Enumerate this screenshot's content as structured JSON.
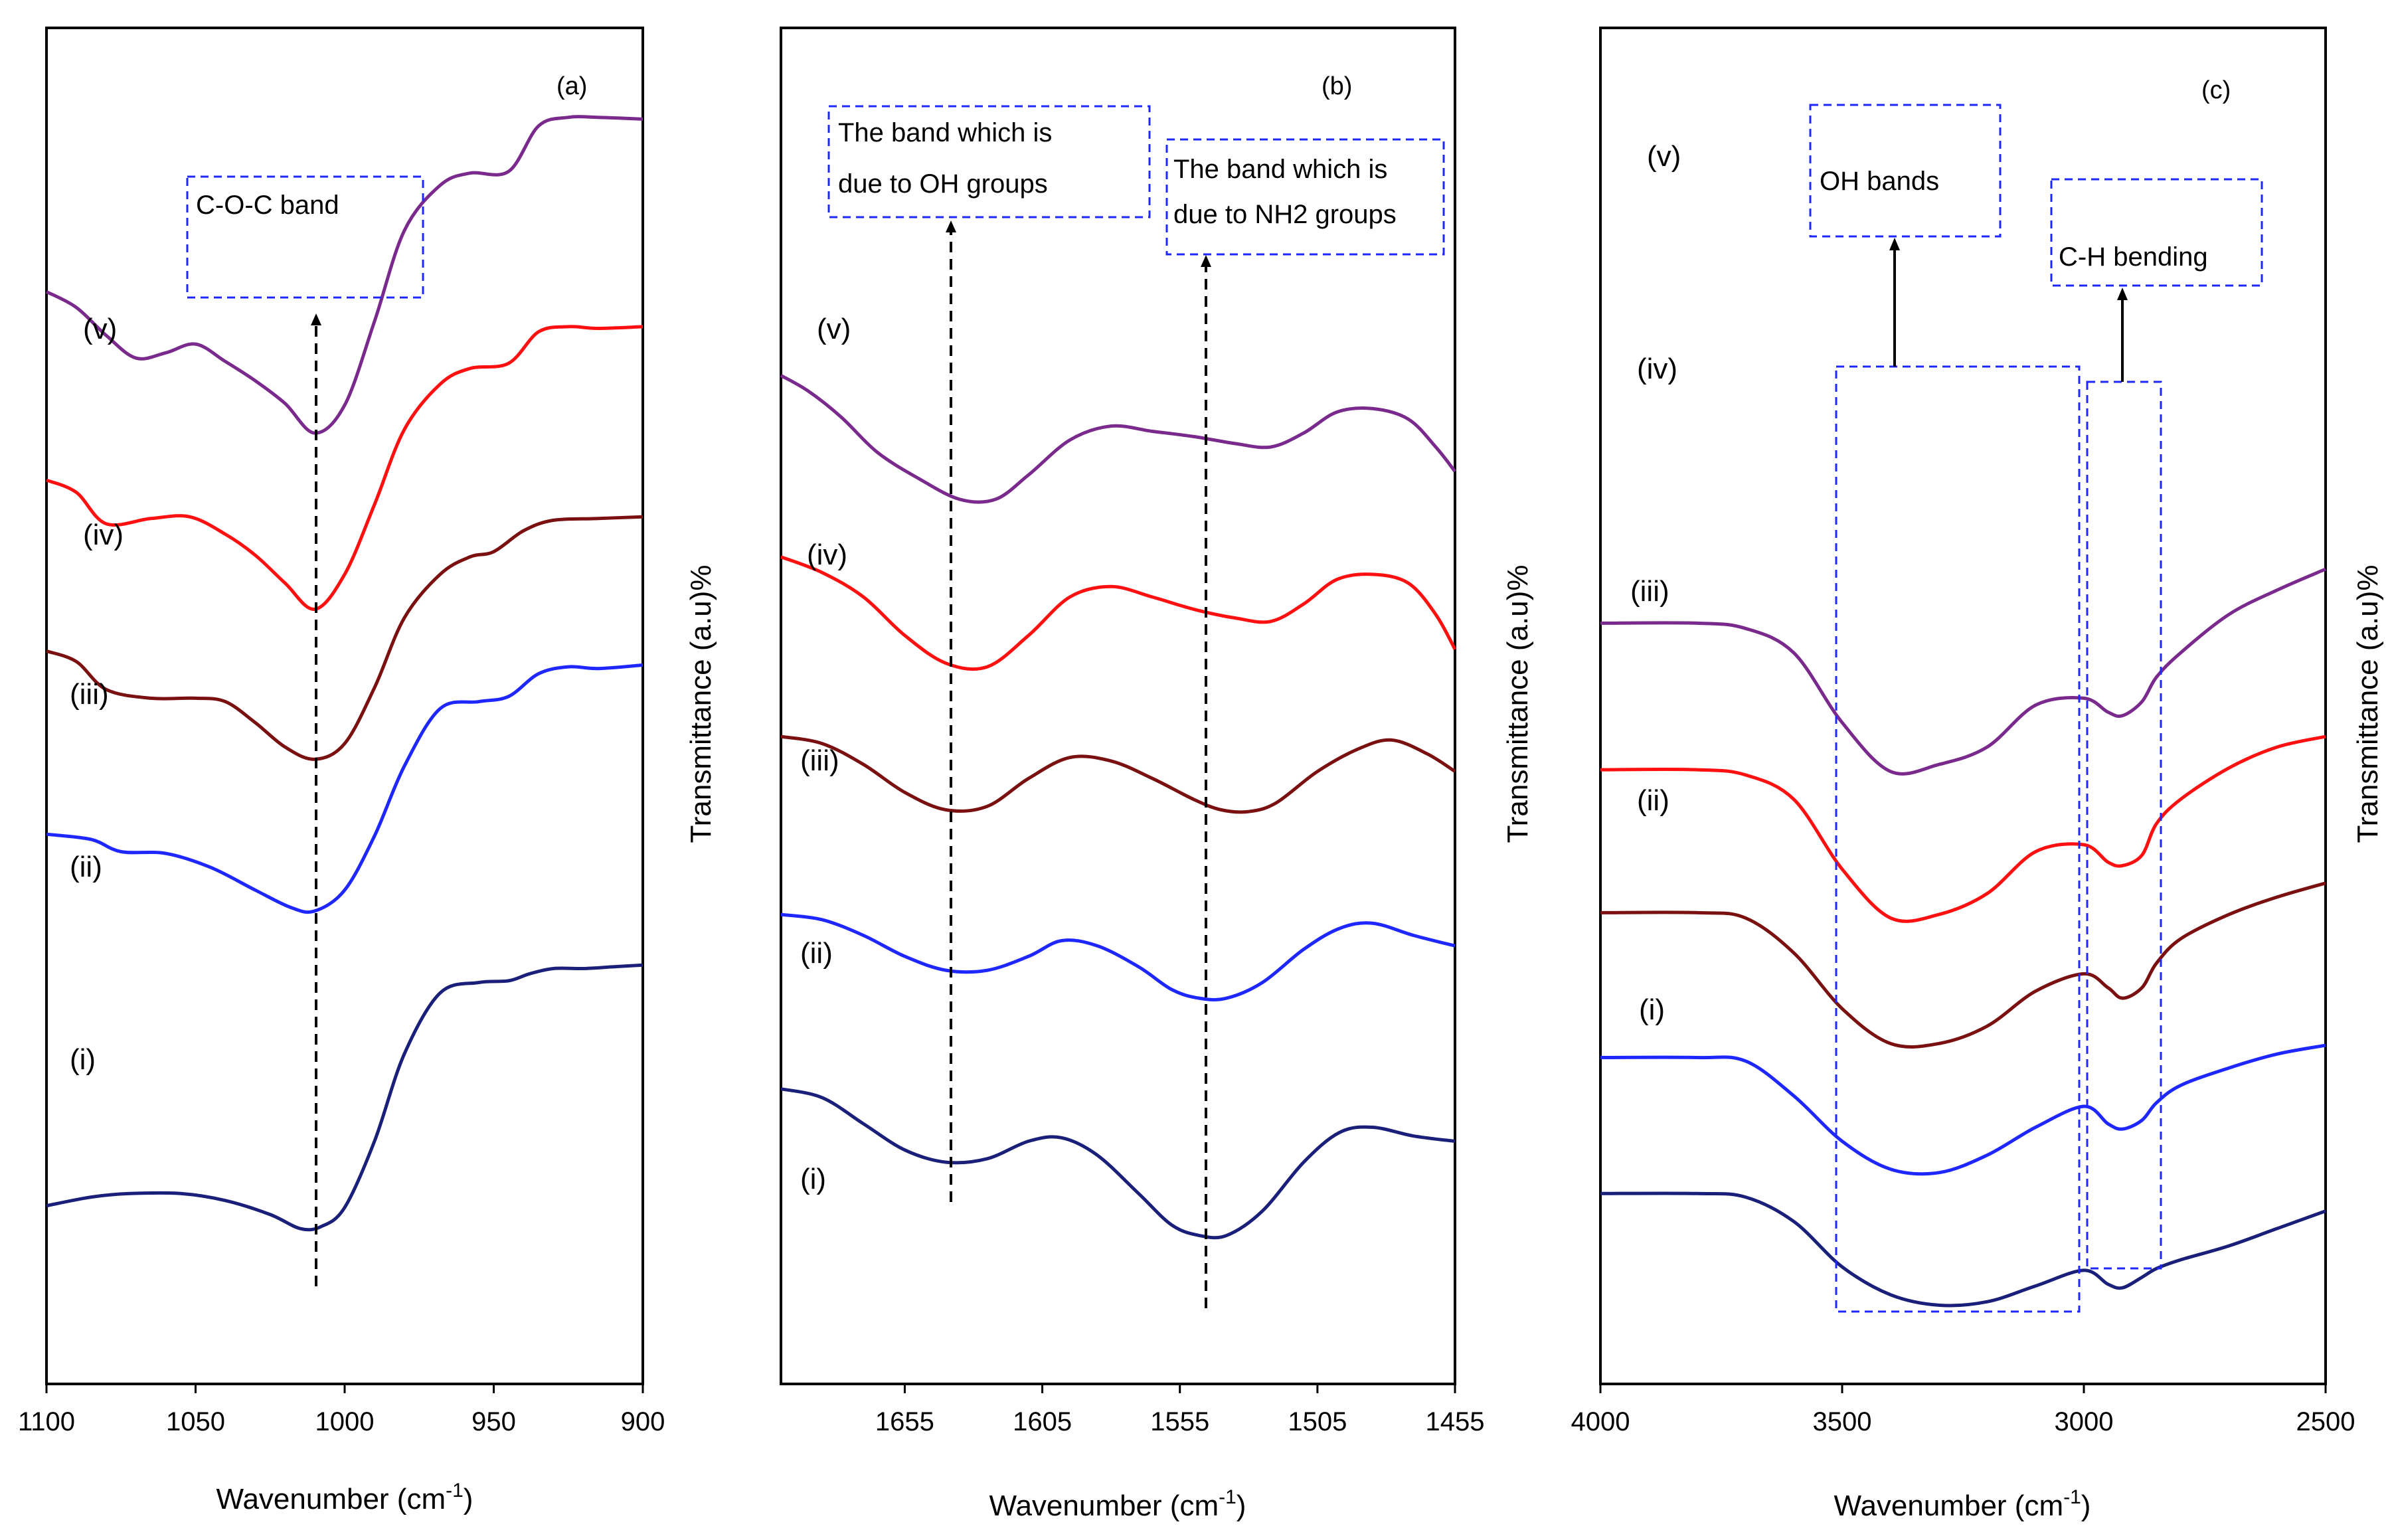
{
  "figure_text": {
    "y_axis_label": "Transmittance (a.u)%",
    "x_axis_label_main": "Wavenumber (cm",
    "x_axis_label_sup": "-1",
    "x_axis_label_tail": ")"
  },
  "chart_data": [
    {
      "type": "line",
      "panel_label": "(a)",
      "xlabel": "Wavenumber (cm-1)",
      "ylabel": "Transmittance (a.u)%",
      "xlim": [
        1100,
        900
      ],
      "x_reversed": true,
      "xticks": [
        1100,
        1050,
        1000,
        950,
        900
      ],
      "y_units": "arbitrary (stacked)",
      "grid": false,
      "series": [
        {
          "name": "(i)",
          "color": "#1a1f7a",
          "x": [
            1100,
            1085,
            1072,
            1055,
            1040,
            1025,
            1015,
            1008,
            1000,
            990,
            980,
            968,
            955,
            945,
            938,
            930,
            920,
            910,
            900
          ],
          "y": [
            0.93,
            0.98,
            1.0,
            1.0,
            0.96,
            0.88,
            0.8,
            0.81,
            0.92,
            1.3,
            1.8,
            2.15,
            2.21,
            2.22,
            2.26,
            2.29,
            2.29,
            2.3,
            2.31
          ]
        },
        {
          "name": "(ii)",
          "color": "#1e27ff",
          "x": [
            1100,
            1085,
            1075,
            1060,
            1045,
            1030,
            1018,
            1010,
            1000,
            990,
            980,
            968,
            955,
            945,
            935,
            925,
            915,
            900
          ],
          "y": [
            3.06,
            3.03,
            2.96,
            2.95,
            2.87,
            2.74,
            2.64,
            2.62,
            2.74,
            3.05,
            3.45,
            3.78,
            3.82,
            3.85,
            3.98,
            4.02,
            4.01,
            4.03
          ]
        },
        {
          "name": "(iii)",
          "color": "#7a1010",
          "x": [
            1100,
            1090,
            1080,
            1065,
            1050,
            1040,
            1030,
            1020,
            1010,
            1000,
            990,
            980,
            968,
            958,
            950,
            940,
            930,
            915,
            900
          ],
          "y": [
            4.11,
            4.05,
            3.89,
            3.84,
            3.84,
            3.82,
            3.7,
            3.56,
            3.49,
            3.58,
            3.9,
            4.3,
            4.55,
            4.65,
            4.68,
            4.8,
            4.86,
            4.87,
            4.88
          ]
        },
        {
          "name": "(iv)",
          "color": "#ff1010",
          "x": [
            1100,
            1090,
            1080,
            1065,
            1052,
            1040,
            1030,
            1020,
            1010,
            1000,
            990,
            980,
            968,
            958,
            945,
            935,
            925,
            915,
            900
          ],
          "y": [
            5.09,
            5.02,
            4.84,
            4.87,
            4.88,
            4.78,
            4.66,
            4.5,
            4.35,
            4.55,
            4.95,
            5.38,
            5.64,
            5.73,
            5.76,
            5.94,
            5.97,
            5.96,
            5.97
          ]
        },
        {
          "name": "(v)",
          "color": "#7a2a8c",
          "x": [
            1100,
            1090,
            1080,
            1070,
            1060,
            1050,
            1040,
            1030,
            1020,
            1010,
            1000,
            990,
            980,
            968,
            958,
            945,
            935,
            925,
            915,
            900
          ],
          "y": [
            6.17,
            6.08,
            5.92,
            5.79,
            5.82,
            5.87,
            5.77,
            5.66,
            5.53,
            5.36,
            5.52,
            6.0,
            6.52,
            6.78,
            6.85,
            6.86,
            7.12,
            7.17,
            7.17,
            7.16
          ]
        }
      ],
      "annotations": [
        {
          "text": "C-O-C band",
          "x": 1010
        }
      ]
    },
    {
      "type": "line",
      "panel_label": "(b)",
      "xlabel": "Wavenumber (cm-1)",
      "ylabel": "Transmittance (a.u)%",
      "xlim": [
        1700,
        1455
      ],
      "x_reversed": true,
      "xticks": [
        1655,
        1605,
        1555,
        1505,
        1455
      ],
      "y_units": "arbitrary (stacked)",
      "grid": false,
      "series": [
        {
          "name": "(i)",
          "color": "#1a1f7a",
          "x": [
            1700,
            1685,
            1670,
            1655,
            1640,
            1625,
            1610,
            1598,
            1585,
            1570,
            1558,
            1548,
            1538,
            1525,
            1510,
            1497,
            1485,
            1470,
            1455
          ],
          "y": [
            1.6,
            1.55,
            1.4,
            1.25,
            1.18,
            1.2,
            1.3,
            1.32,
            1.22,
            1.0,
            0.82,
            0.76,
            0.76,
            0.9,
            1.18,
            1.35,
            1.38,
            1.33,
            1.3
          ]
        },
        {
          "name": "(ii)",
          "color": "#1e27ff",
          "x": [
            1700,
            1685,
            1670,
            1655,
            1640,
            1625,
            1610,
            1598,
            1585,
            1570,
            1558,
            1548,
            1538,
            1525,
            1510,
            1497,
            1485,
            1470,
            1455
          ],
          "y": [
            2.6,
            2.57,
            2.48,
            2.36,
            2.28,
            2.28,
            2.36,
            2.45,
            2.42,
            2.3,
            2.17,
            2.12,
            2.12,
            2.21,
            2.4,
            2.52,
            2.55,
            2.48,
            2.42
          ]
        },
        {
          "name": "(iii)",
          "color": "#7a1010",
          "x": [
            1700,
            1685,
            1670,
            1655,
            1640,
            1625,
            1610,
            1595,
            1580,
            1565,
            1550,
            1540,
            1530,
            1520,
            1505,
            1490,
            1478,
            1465,
            1455
          ],
          "y": [
            3.62,
            3.58,
            3.46,
            3.3,
            3.2,
            3.22,
            3.38,
            3.5,
            3.48,
            3.38,
            3.26,
            3.2,
            3.19,
            3.24,
            3.42,
            3.55,
            3.6,
            3.52,
            3.42
          ]
        },
        {
          "name": "(iv)",
          "color": "#ff1010",
          "x": [
            1700,
            1685,
            1670,
            1655,
            1640,
            1625,
            1610,
            1595,
            1580,
            1565,
            1550,
            1535,
            1522,
            1510,
            1498,
            1485,
            1472,
            1462,
            1455
          ],
          "y": [
            4.65,
            4.56,
            4.42,
            4.2,
            4.04,
            4.02,
            4.2,
            4.42,
            4.48,
            4.42,
            4.35,
            4.3,
            4.28,
            4.38,
            4.52,
            4.55,
            4.5,
            4.32,
            4.12
          ]
        },
        {
          "name": "(v)",
          "color": "#7a2a8c",
          "x": [
            1700,
            1690,
            1678,
            1665,
            1650,
            1635,
            1622,
            1610,
            1595,
            1580,
            1565,
            1550,
            1535,
            1522,
            1510,
            1498,
            1485,
            1472,
            1462,
            1455
          ],
          "y": [
            5.69,
            5.6,
            5.45,
            5.25,
            5.1,
            4.98,
            4.98,
            5.12,
            5.32,
            5.4,
            5.37,
            5.34,
            5.3,
            5.28,
            5.36,
            5.48,
            5.5,
            5.44,
            5.28,
            5.14
          ]
        }
      ],
      "annotations": [
        {
          "text_lines": [
            "The band which is",
            "due to OH groups"
          ],
          "x": 1635
        },
        {
          "text_lines": [
            "The band which is",
            "due to NH2 groups"
          ],
          "x": 1545
        }
      ]
    },
    {
      "type": "line",
      "panel_label": "(c)",
      "xlabel": "Wavenumber (cm-1)",
      "ylabel": "Transmittance (a.u)%",
      "xlim": [
        4000,
        2500
      ],
      "x_reversed": true,
      "xticks": [
        4000,
        3500,
        3000,
        2500
      ],
      "y_units": "arbitrary (stacked)",
      "grid": false,
      "series": [
        {
          "name": "(i)",
          "color": "#1a1f7a",
          "x": [
            4000,
            3800,
            3700,
            3600,
            3500,
            3400,
            3300,
            3200,
            3100,
            3000,
            2950,
            2920,
            2880,
            2850,
            2800,
            2700,
            2600,
            2500
          ],
          "y": [
            1.0,
            1.0,
            0.98,
            0.84,
            0.58,
            0.42,
            0.36,
            0.38,
            0.47,
            0.56,
            0.48,
            0.46,
            0.52,
            0.57,
            0.62,
            0.7,
            0.8,
            0.9
          ]
        },
        {
          "name": "(ii)",
          "color": "#1e27ff",
          "x": [
            4000,
            3800,
            3700,
            3600,
            3500,
            3400,
            3300,
            3200,
            3100,
            3000,
            2950,
            2920,
            2880,
            2850,
            2800,
            2700,
            2600,
            2500
          ],
          "y": [
            1.78,
            1.78,
            1.76,
            1.56,
            1.3,
            1.14,
            1.12,
            1.22,
            1.38,
            1.5,
            1.4,
            1.37,
            1.42,
            1.52,
            1.62,
            1.72,
            1.8,
            1.85
          ]
        },
        {
          "name": "(iii)",
          "color": "#7a1010",
          "x": [
            4000,
            3800,
            3700,
            3600,
            3500,
            3400,
            3300,
            3200,
            3100,
            3000,
            2950,
            2920,
            2880,
            2850,
            2800,
            2700,
            2600,
            2500
          ],
          "y": [
            2.61,
            2.61,
            2.58,
            2.38,
            2.06,
            1.86,
            1.86,
            1.96,
            2.16,
            2.26,
            2.18,
            2.12,
            2.18,
            2.32,
            2.46,
            2.6,
            2.7,
            2.78
          ]
        },
        {
          "name": "(iv)",
          "color": "#ff1010",
          "x": [
            4000,
            3800,
            3700,
            3600,
            3500,
            3400,
            3300,
            3200,
            3100,
            3000,
            2950,
            2920,
            2880,
            2850,
            2800,
            2700,
            2600,
            2500
          ],
          "y": [
            3.43,
            3.43,
            3.4,
            3.26,
            2.86,
            2.58,
            2.6,
            2.72,
            2.96,
            3.0,
            2.9,
            2.88,
            2.94,
            3.12,
            3.26,
            3.44,
            3.56,
            3.62
          ]
        },
        {
          "name": "(v)",
          "color": "#7a2a8c",
          "x": [
            4000,
            3800,
            3700,
            3600,
            3500,
            3400,
            3300,
            3200,
            3100,
            3000,
            2950,
            2920,
            2880,
            2850,
            2800,
            2700,
            2600,
            2500
          ],
          "y": [
            4.27,
            4.27,
            4.24,
            4.1,
            3.7,
            3.42,
            3.46,
            3.56,
            3.8,
            3.84,
            3.76,
            3.74,
            3.82,
            3.96,
            4.1,
            4.32,
            4.46,
            4.58
          ]
        }
      ],
      "annotations": [
        {
          "text": "OH bands",
          "region_x": [
            3520,
            3015
          ]
        },
        {
          "text": "C-H bending",
          "region_x": [
            2995,
            2845
          ]
        }
      ]
    }
  ]
}
